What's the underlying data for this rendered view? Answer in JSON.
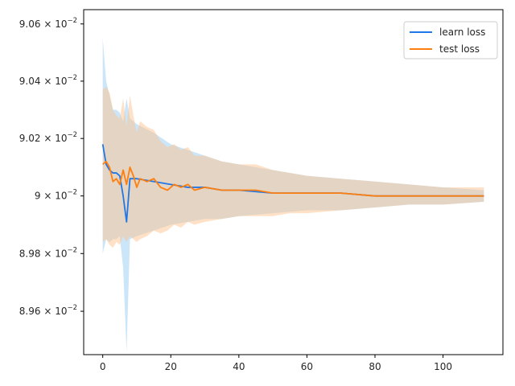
{
  "chart_data": {
    "type": "line",
    "title": "",
    "xlabel": "",
    "ylabel": "",
    "xlim": [
      -5.6,
      117.6
    ],
    "ylim": [
      0.08945,
      0.09065
    ],
    "yscale": "log",
    "grid": false,
    "legend_position": "upper right",
    "x_ticks": [
      0,
      20,
      40,
      60,
      80,
      100
    ],
    "x_tick_labels": [
      "0",
      "20",
      "40",
      "60",
      "80",
      "100"
    ],
    "y_ticks": [
      0.0896,
      0.0898,
      0.09,
      0.0902,
      0.0904,
      0.0906
    ],
    "y_tick_labels": [
      {
        "mantissa": "8.96",
        "base": "10",
        "exp": "−2"
      },
      {
        "mantissa": "8.98",
        "base": "10",
        "exp": "−2"
      },
      {
        "mantissa": "9",
        "base": "10",
        "exp": "−2"
      },
      {
        "mantissa": "9.02",
        "base": "10",
        "exp": "−2"
      },
      {
        "mantissa": "9.04",
        "base": "10",
        "exp": "−2"
      },
      {
        "mantissa": "9.06",
        "base": "10",
        "exp": "−2"
      }
    ],
    "series": [
      {
        "name": "learn loss",
        "color": "#1f77e8",
        "band_color": "#a9d3f5",
        "points": [
          [
            0,
            0.09018,
            0.0898,
            0.09055
          ],
          [
            1,
            0.09011,
            0.08985,
            0.0904
          ],
          [
            2,
            0.09009,
            0.08984,
            0.09035
          ],
          [
            3,
            0.09008,
            0.08985,
            0.0903
          ],
          [
            4,
            0.09008,
            0.08985,
            0.0903
          ],
          [
            5,
            0.09007,
            0.08986,
            0.09029
          ],
          [
            6,
            0.09,
            0.08975,
            0.09026
          ],
          [
            7,
            0.08991,
            0.08946,
            0.09034
          ],
          [
            8,
            0.09006,
            0.08985,
            0.09027
          ],
          [
            10,
            0.09006,
            0.08986,
            0.09025
          ],
          [
            15,
            0.09005,
            0.08988,
            0.09022
          ],
          [
            20,
            0.09004,
            0.0899,
            0.09018
          ],
          [
            25,
            0.09003,
            0.08991,
            0.09016
          ],
          [
            30,
            0.09003,
            0.08992,
            0.09014
          ],
          [
            35,
            0.09002,
            0.08992,
            0.09012
          ],
          [
            40,
            0.09002,
            0.08993,
            0.09011
          ],
          [
            50,
            0.09001,
            0.08994,
            0.09009
          ],
          [
            60,
            0.09001,
            0.08995,
            0.09007
          ],
          [
            70,
            0.09001,
            0.08995,
            0.09006
          ],
          [
            80,
            0.09,
            0.08996,
            0.09005
          ],
          [
            90,
            0.09,
            0.08997,
            0.09004
          ],
          [
            100,
            0.09,
            0.08997,
            0.09003
          ],
          [
            112,
            0.09,
            0.08998,
            0.09002
          ]
        ]
      },
      {
        "name": "test loss",
        "color": "#ff7f0e",
        "band_color": "#fdc38d",
        "points": [
          [
            0,
            0.09011,
            0.08984,
            0.09037
          ],
          [
            1,
            0.09012,
            0.08985,
            0.09038
          ],
          [
            2,
            0.0901,
            0.08983,
            0.09036
          ],
          [
            3,
            0.09005,
            0.08982,
            0.0903
          ],
          [
            4,
            0.09006,
            0.08984,
            0.09028
          ],
          [
            5,
            0.09004,
            0.08983,
            0.09027
          ],
          [
            6,
            0.09009,
            0.08986,
            0.09034
          ],
          [
            7,
            0.09004,
            0.08984,
            0.09024
          ],
          [
            8,
            0.0901,
            0.08986,
            0.09035
          ],
          [
            9,
            0.09007,
            0.08985,
            0.09028
          ],
          [
            10,
            0.09003,
            0.08984,
            0.09022
          ],
          [
            11,
            0.09006,
            0.08985,
            0.09026
          ],
          [
            13,
            0.09005,
            0.08986,
            0.09024
          ],
          [
            15,
            0.09006,
            0.08988,
            0.09023
          ],
          [
            17,
            0.09003,
            0.08987,
            0.09019
          ],
          [
            19,
            0.09002,
            0.08988,
            0.09017
          ],
          [
            21,
            0.09004,
            0.0899,
            0.09018
          ],
          [
            23,
            0.09003,
            0.08989,
            0.09016
          ],
          [
            25,
            0.09004,
            0.08991,
            0.09017
          ],
          [
            27,
            0.09002,
            0.0899,
            0.09014
          ],
          [
            30,
            0.09003,
            0.08991,
            0.09014
          ],
          [
            35,
            0.09002,
            0.08992,
            0.09012
          ],
          [
            40,
            0.09002,
            0.08993,
            0.09011
          ],
          [
            45,
            0.09002,
            0.08993,
            0.09011
          ],
          [
            50,
            0.09001,
            0.08993,
            0.09009
          ],
          [
            55,
            0.09001,
            0.08994,
            0.09008
          ],
          [
            60,
            0.09001,
            0.08994,
            0.09007
          ],
          [
            70,
            0.09001,
            0.08995,
            0.09006
          ],
          [
            80,
            0.09,
            0.08996,
            0.09005
          ],
          [
            90,
            0.09,
            0.08997,
            0.09004
          ],
          [
            100,
            0.09,
            0.08997,
            0.09003
          ],
          [
            112,
            0.09,
            0.08998,
            0.09003
          ]
        ]
      }
    ]
  }
}
